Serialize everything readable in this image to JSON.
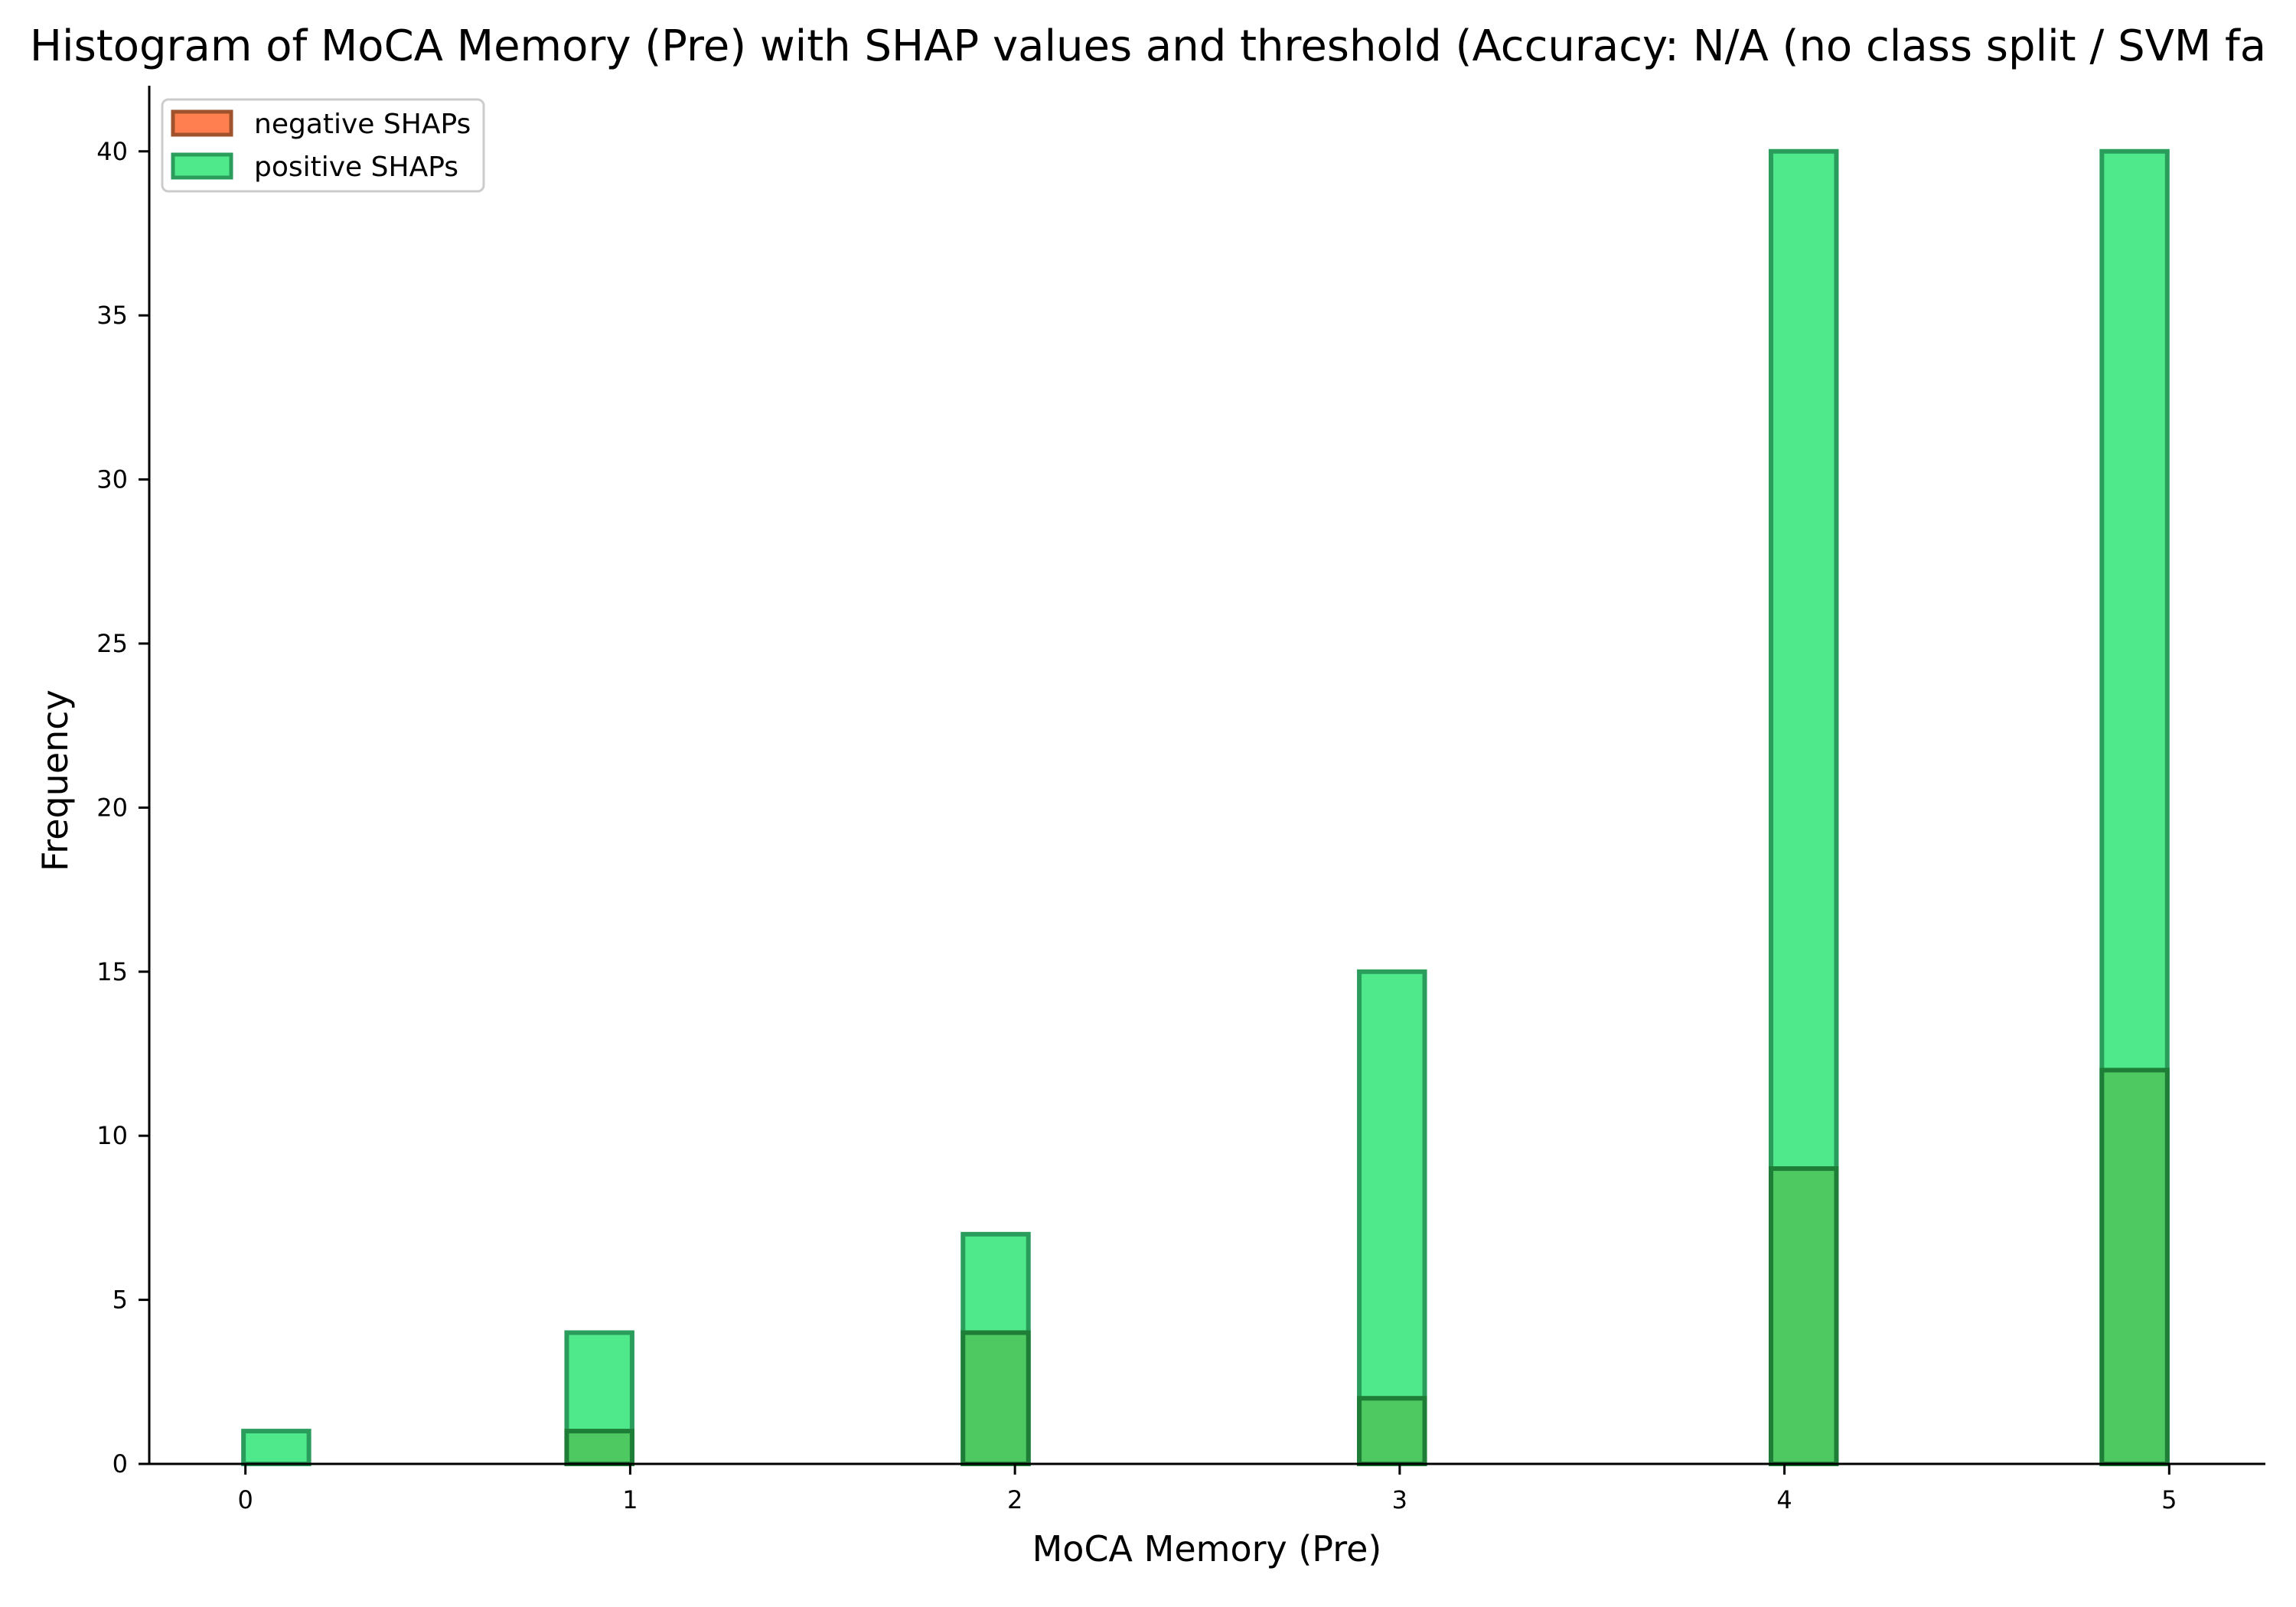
{
  "chart_data": {
    "type": "bar",
    "title": "Histogram of MoCA Memory (Pre) with SHAP values and threshold (Accuracy: N/A (no class split / SVM fa",
    "xlabel": "MoCA Memory (Pre)",
    "ylabel": "Frequency",
    "xlim": [
      -0.25,
      5.25
    ],
    "ylim": [
      0,
      42
    ],
    "x_ticks": [
      "0",
      "1",
      "2",
      "3",
      "4",
      "5"
    ],
    "y_ticks": [
      "0",
      "5",
      "10",
      "15",
      "20",
      "25",
      "30",
      "35",
      "40"
    ],
    "bin_width": 0.17,
    "legend_position": "top-left",
    "grid": false,
    "series": [
      {
        "name": "positive SHAPs",
        "color": "#4fe98b",
        "edge_color": "#2a9d5c",
        "bins": [
          {
            "x": 0.08,
            "value": 1
          },
          {
            "x": 0.92,
            "value": 4
          },
          {
            "x": 1.95,
            "value": 7
          },
          {
            "x": 2.98,
            "value": 15
          },
          {
            "x": 4.05,
            "value": 40
          },
          {
            "x": 4.91,
            "value": 40
          }
        ]
      },
      {
        "name": "negative SHAPs",
        "color": "#ff7f50",
        "edge_color": "#a0522d",
        "bins": [
          {
            "x": 0.92,
            "value": 1
          },
          {
            "x": 1.95,
            "value": 4
          },
          {
            "x": 2.98,
            "value": 2
          },
          {
            "x": 4.05,
            "value": 9
          },
          {
            "x": 4.91,
            "value": 12
          }
        ]
      }
    ],
    "overlap_color": "#4ec860",
    "overlap_edge_color": "#1e7d36"
  }
}
